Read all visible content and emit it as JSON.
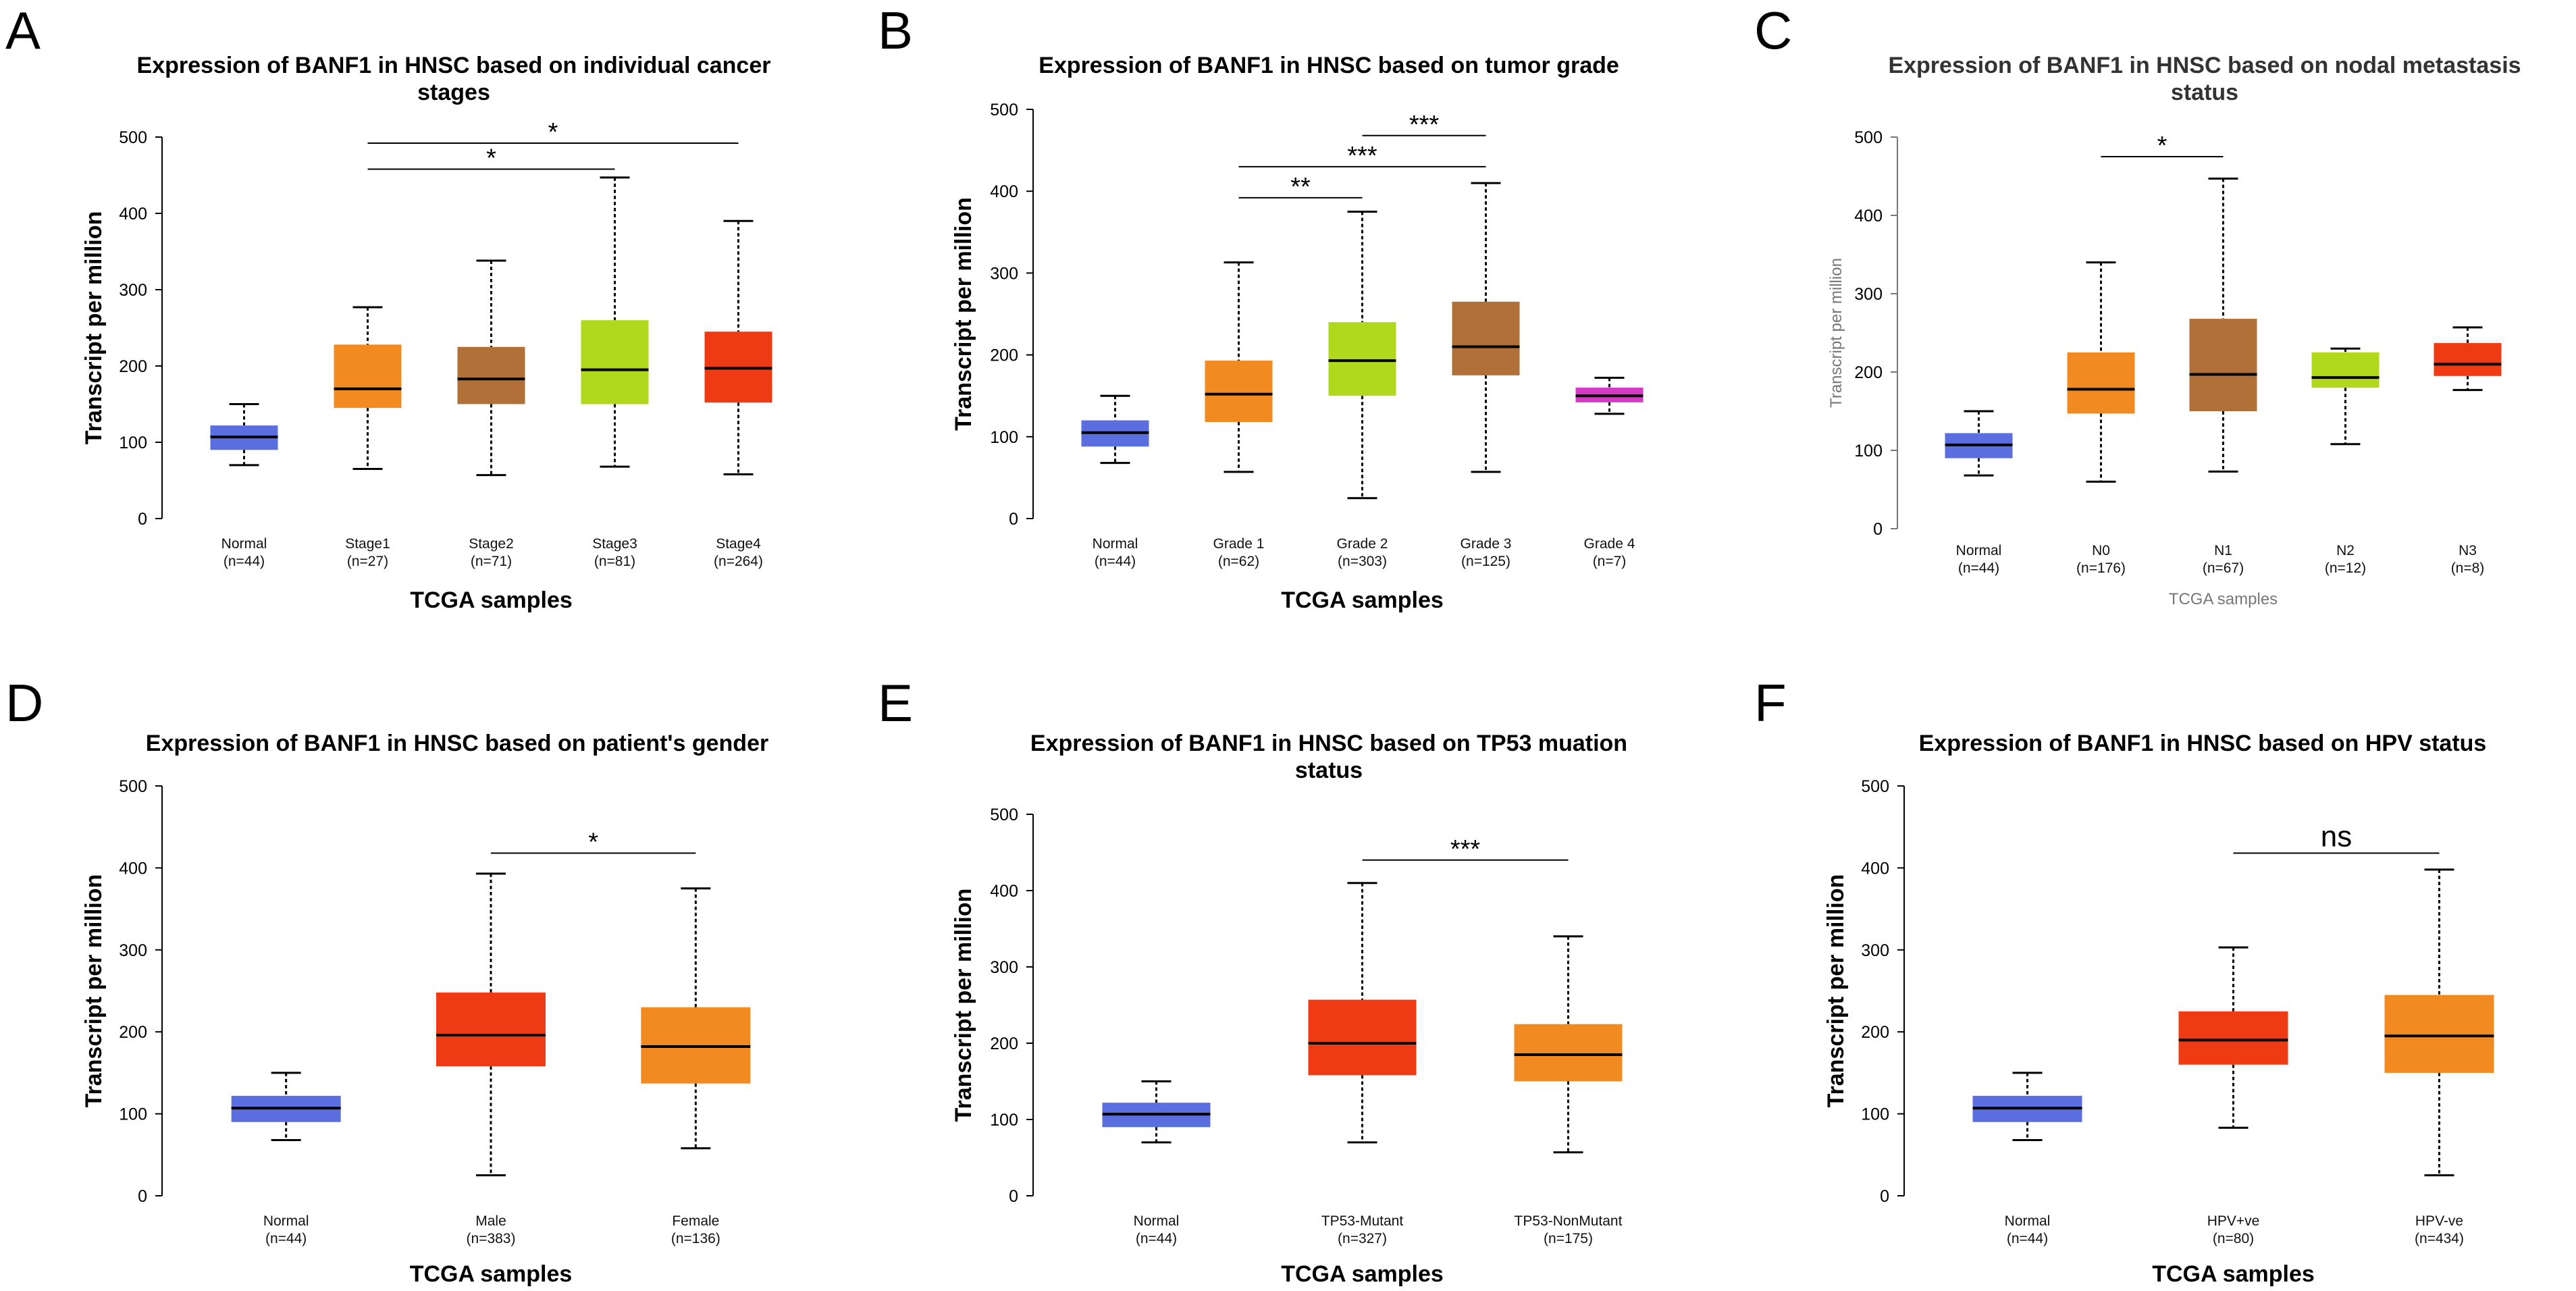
{
  "colors": {
    "normal": "#5b6ee0",
    "orange": "#f28a22",
    "brown": "#b07038",
    "lime": "#b0d81c",
    "red": "#ee3b14",
    "magenta": "#d638c8"
  },
  "chart_data": [
    {
      "type": "box",
      "panel": "A",
      "title_lines": [
        "Expression of BANF1 in HNSC based on individual cancer",
        "stages"
      ],
      "xlabel": "TCGA samples",
      "ylabel": "Transcript per million",
      "ylim": [
        0,
        500
      ],
      "yticks": [
        "0",
        "100",
        "200",
        "300",
        "400",
        "500"
      ],
      "categories": [
        {
          "name": "Normal",
          "n": "(n=44)",
          "color": "normal",
          "min": 70,
          "q1": 90,
          "median": 107,
          "q3": 122,
          "max": 150
        },
        {
          "name": "Stage1",
          "n": "(n=27)",
          "color": "orange",
          "min": 65,
          "q1": 145,
          "median": 170,
          "q3": 228,
          "max": 277
        },
        {
          "name": "Stage2",
          "n": "(n=71)",
          "color": "brown",
          "min": 57,
          "q1": 150,
          "median": 183,
          "q3": 225,
          "max": 338
        },
        {
          "name": "Stage3",
          "n": "(n=81)",
          "color": "lime",
          "min": 68,
          "q1": 150,
          "median": 195,
          "q3": 260,
          "max": 447
        },
        {
          "name": "Stage4",
          "n": "(n=264)",
          "color": "red",
          "min": 58,
          "q1": 152,
          "median": 197,
          "q3": 245,
          "max": 390
        }
      ],
      "significance": [
        {
          "from": 1,
          "to": 3,
          "y": 458,
          "label": "*"
        },
        {
          "from": 1,
          "to": 4,
          "y": 492,
          "label": "*"
        }
      ]
    },
    {
      "type": "box",
      "panel": "B",
      "title_lines": [
        "Expression of BANF1 in HNSC based on tumor grade"
      ],
      "xlabel": "TCGA samples",
      "ylabel": "Transcript per million",
      "ylim": [
        0,
        500
      ],
      "yticks": [
        "0",
        "100",
        "200",
        "300",
        "400",
        "500"
      ],
      "categories": [
        {
          "name": "Normal",
          "n": "(n=44)",
          "color": "normal",
          "min": 68,
          "q1": 88,
          "median": 105,
          "q3": 120,
          "max": 150
        },
        {
          "name": "Grade 1",
          "n": "(n=62)",
          "color": "orange",
          "min": 57,
          "q1": 118,
          "median": 152,
          "q3": 193,
          "max": 313
        },
        {
          "name": "Grade 2",
          "n": "(n=303)",
          "color": "lime",
          "min": 25,
          "q1": 150,
          "median": 193,
          "q3": 240,
          "max": 375
        },
        {
          "name": "Grade 3",
          "n": "(n=125)",
          "color": "brown",
          "min": 57,
          "q1": 175,
          "median": 210,
          "q3": 265,
          "max": 410
        },
        {
          "name": "Grade 4",
          "n": "(n=7)",
          "color": "magenta",
          "min": 128,
          "q1": 142,
          "median": 150,
          "q3": 160,
          "max": 172
        }
      ],
      "significance": [
        {
          "from": 1,
          "to": 2,
          "y": 392,
          "label": "**"
        },
        {
          "from": 1,
          "to": 3,
          "y": 430,
          "label": "***"
        },
        {
          "from": 2,
          "to": 3,
          "y": 468,
          "label": "***"
        }
      ]
    },
    {
      "type": "box",
      "panel": "C",
      "title_lines": [
        "Expression of BANF1 in HNSC based on nodal metastasis",
        "status"
      ],
      "xlabel": "TCGA samples",
      "ylabel": "Transcript per million",
      "style": "light",
      "ylim": [
        0,
        500
      ],
      "yticks": [
        "0",
        "100",
        "200",
        "300",
        "400",
        "500"
      ],
      "categories": [
        {
          "name": "Normal",
          "n": "(n=44)",
          "color": "normal",
          "min": 68,
          "q1": 90,
          "median": 107,
          "q3": 122,
          "max": 150
        },
        {
          "name": "N0",
          "n": "(n=176)",
          "color": "orange",
          "min": 60,
          "q1": 147,
          "median": 178,
          "q3": 225,
          "max": 340
        },
        {
          "name": "N1",
          "n": "(n=67)",
          "color": "brown",
          "min": 73,
          "q1": 150,
          "median": 197,
          "q3": 268,
          "max": 447
        },
        {
          "name": "N2",
          "n": "(n=12)",
          "color": "lime",
          "min": 108,
          "q1": 180,
          "median": 193,
          "q3": 225,
          "max": 230
        },
        {
          "name": "N3",
          "n": "(n=8)",
          "color": "red",
          "min": 177,
          "q1": 195,
          "median": 210,
          "q3": 237,
          "max": 257
        }
      ],
      "significance": [
        {
          "from": 1,
          "to": 2,
          "y": 475,
          "label": "*"
        }
      ]
    },
    {
      "type": "box",
      "panel": "D",
      "title_lines": [
        "Expression of BANF1 in HNSC based on patient's gender"
      ],
      "xlabel": "TCGA samples",
      "ylabel": "Transcript per million",
      "ylim": [
        0,
        500
      ],
      "yticks": [
        "0",
        "100",
        "200",
        "300",
        "400",
        "500"
      ],
      "categories": [
        {
          "name": "Normal",
          "n": "(n=44)",
          "color": "normal",
          "min": 68,
          "q1": 90,
          "median": 107,
          "q3": 122,
          "max": 150
        },
        {
          "name": "Male",
          "n": "(n=383)",
          "color": "red",
          "min": 25,
          "q1": 158,
          "median": 196,
          "q3": 248,
          "max": 393
        },
        {
          "name": "Female",
          "n": "(n=136)",
          "color": "orange",
          "min": 58,
          "q1": 137,
          "median": 182,
          "q3": 230,
          "max": 375
        }
      ],
      "significance": [
        {
          "from": 1,
          "to": 2,
          "y": 418,
          "label": "*"
        }
      ]
    },
    {
      "type": "box",
      "panel": "E",
      "title_lines": [
        "Expression of BANF1 in HNSC based on TP53 muation",
        "status"
      ],
      "xlabel": "TCGA samples",
      "ylabel": "Transcript per million",
      "ylim": [
        0,
        500
      ],
      "yticks": [
        "0",
        "100",
        "200",
        "300",
        "400",
        "500"
      ],
      "categories": [
        {
          "name": "Normal",
          "n": "(n=44)",
          "color": "normal",
          "min": 70,
          "q1": 90,
          "median": 107,
          "q3": 122,
          "max": 150
        },
        {
          "name": "TP53-Mutant",
          "n": "(n=327)",
          "color": "red",
          "min": 70,
          "q1": 158,
          "median": 200,
          "q3": 257,
          "max": 410
        },
        {
          "name": "TP53-NonMutant",
          "n": "(n=175)",
          "color": "orange",
          "min": 57,
          "q1": 150,
          "median": 185,
          "q3": 225,
          "max": 340
        }
      ],
      "significance": [
        {
          "from": 1,
          "to": 2,
          "y": 440,
          "label": "***"
        }
      ]
    },
    {
      "type": "box",
      "panel": "F",
      "title_lines": [
        "Expression of BANF1 in HNSC based on HPV status"
      ],
      "xlabel": "TCGA samples",
      "ylabel": "Transcript per million",
      "ylim": [
        0,
        500
      ],
      "yticks": [
        "0",
        "100",
        "200",
        "300",
        "400",
        "500"
      ],
      "categories": [
        {
          "name": "Normal",
          "n": "(n=44)",
          "color": "normal",
          "min": 68,
          "q1": 90,
          "median": 107,
          "q3": 122,
          "max": 150
        },
        {
          "name": "HPV+ve",
          "n": "(n=80)",
          "color": "red",
          "min": 83,
          "q1": 160,
          "median": 190,
          "q3": 225,
          "max": 303
        },
        {
          "name": "HPV-ve",
          "n": "(n=434)",
          "color": "orange",
          "min": 25,
          "q1": 150,
          "median": 195,
          "q3": 245,
          "max": 398
        }
      ],
      "significance": [
        {
          "from": 1,
          "to": 2,
          "y": 418,
          "label": "ns"
        }
      ]
    }
  ]
}
